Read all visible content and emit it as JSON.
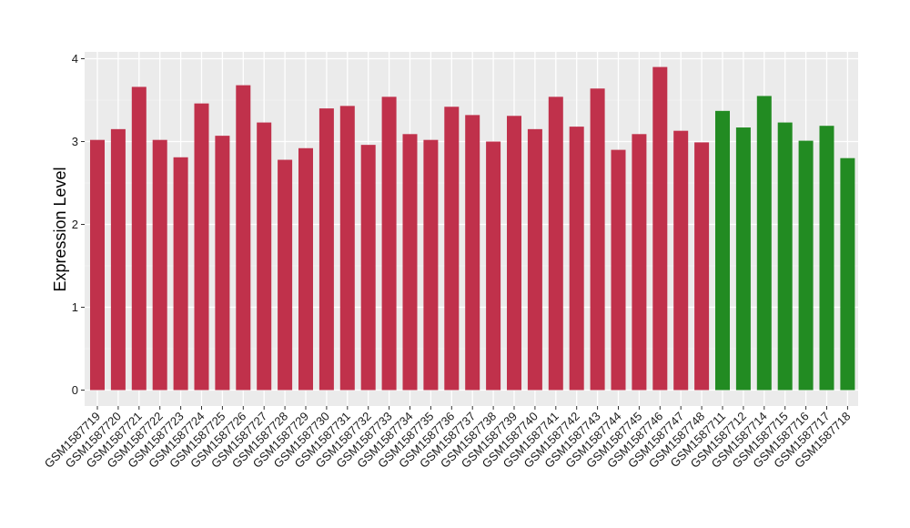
{
  "chart_data": {
    "type": "bar",
    "ylabel": "Expression Level",
    "xlabel": "",
    "ylim": [
      0,
      4.1
    ],
    "yticks": [
      0,
      1,
      2,
      3,
      4
    ],
    "grid": true,
    "colors": {
      "group_a": "#C0314B",
      "group_b": "#228B22",
      "panel": "#EBEBEB",
      "grid": "#FFFFFF"
    },
    "categories": [
      "GSM1587719",
      "GSM1587720",
      "GSM1587721",
      "GSM1587722",
      "GSM1587723",
      "GSM1587724",
      "GSM1587725",
      "GSM1587726",
      "GSM1587727",
      "GSM1587728",
      "GSM1587729",
      "GSM1587730",
      "GSM1587731",
      "GSM1587732",
      "GSM1587733",
      "GSM1587734",
      "GSM1587735",
      "GSM1587736",
      "GSM1587737",
      "GSM1587738",
      "GSM1587739",
      "GSM1587740",
      "GSM1587741",
      "GSM1587742",
      "GSM1587743",
      "GSM1587744",
      "GSM1587745",
      "GSM1587746",
      "GSM1587747",
      "GSM1587748",
      "GSM1587711",
      "GSM1587712",
      "GSM1587714",
      "GSM1587715",
      "GSM1587716",
      "GSM1587717",
      "GSM1587718"
    ],
    "values": [
      3.02,
      3.15,
      3.66,
      3.02,
      2.81,
      3.46,
      3.07,
      3.68,
      3.23,
      2.78,
      2.92,
      3.4,
      3.43,
      2.96,
      3.54,
      3.09,
      3.02,
      3.42,
      3.32,
      3.0,
      3.31,
      3.15,
      3.54,
      3.18,
      3.64,
      2.9,
      3.09,
      3.9,
      3.13,
      2.99,
      3.37,
      3.17,
      3.55,
      3.23,
      3.01,
      3.19,
      2.8
    ],
    "groups": [
      "a",
      "a",
      "a",
      "a",
      "a",
      "a",
      "a",
      "a",
      "a",
      "a",
      "a",
      "a",
      "a",
      "a",
      "a",
      "a",
      "a",
      "a",
      "a",
      "a",
      "a",
      "a",
      "a",
      "a",
      "a",
      "a",
      "a",
      "a",
      "a",
      "a",
      "b",
      "b",
      "b",
      "b",
      "b",
      "b",
      "b"
    ]
  }
}
